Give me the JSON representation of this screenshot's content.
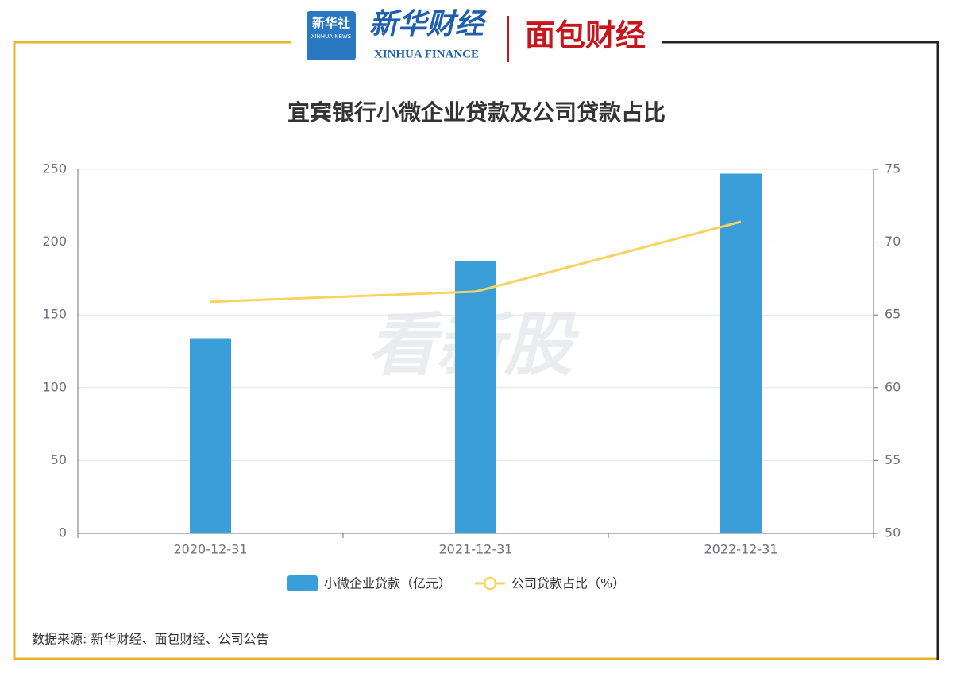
{
  "header": {
    "logo1_title": "新华社",
    "logo1_sub": "XINHUA NEWS",
    "logo2_title": "新华财经",
    "logo2_sub": "XINHUA FINANCE",
    "logo3_title": "面包财经"
  },
  "watermark": "看新股",
  "source": "数据来源: 新华财经、面包财经、公司公告",
  "chart_data": {
    "type": "bar",
    "title": "宜宾银行小微企业贷款及公司贷款占比",
    "categories": [
      "2020-12-31",
      "2021-12-31",
      "2022-12-31"
    ],
    "series": [
      {
        "name": "小微企业贷款（亿元）",
        "type": "bar",
        "color": "#3a9fd8",
        "values": [
          134,
          187,
          247
        ]
      },
      {
        "name": "公司贷款占比（%）",
        "type": "line",
        "axis": "y2",
        "color": "#f7d462",
        "values": [
          65.9,
          66.6,
          71.4
        ]
      }
    ],
    "ylim": [
      0,
      250
    ],
    "yticks": [
      0,
      50,
      100,
      150,
      200,
      250
    ],
    "y2lim": [
      50,
      75
    ],
    "y2ticks": [
      50,
      55,
      60,
      65,
      70,
      75
    ],
    "grid": true,
    "legend": "bottom"
  }
}
